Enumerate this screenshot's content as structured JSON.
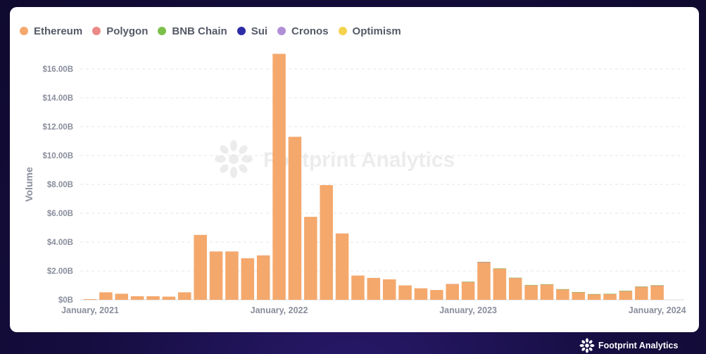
{
  "branding": {
    "watermark": "Footprint Analytics",
    "footer": "Footprint Analytics"
  },
  "legend": [
    {
      "name": "Ethereum",
      "color": "#f4a86c"
    },
    {
      "name": "Polygon",
      "color": "#ea8a86"
    },
    {
      "name": "BNB Chain",
      "color": "#7cc04b"
    },
    {
      "name": "Sui",
      "color": "#2e2ba6"
    },
    {
      "name": "Cronos",
      "color": "#b18fd6"
    },
    {
      "name": "Optimism",
      "color": "#f5d24e"
    }
  ],
  "chart_data": {
    "type": "bar",
    "stacked": true,
    "title": "",
    "xlabel": "",
    "ylabel": "Volume",
    "ylim": [
      0,
      17
    ],
    "yticks": [
      0,
      2,
      4,
      6,
      8,
      10,
      12,
      14,
      16
    ],
    "ytick_labels": [
      "$0B",
      "$2.00B",
      "$4.00B",
      "$6.00B",
      "$8.00B",
      "$10.00B",
      "$12.00B",
      "$14.00B",
      "$16.00B"
    ],
    "xtick_labels": [
      "January, 2021",
      "January, 2022",
      "January, 2023",
      "January, 2024"
    ],
    "xtick_months": [
      "2021-01",
      "2022-01",
      "2023-01",
      "2024-01"
    ],
    "grid": true,
    "legend_position": "top-left",
    "categories": [
      "2021-01",
      "2021-02",
      "2021-03",
      "2021-04",
      "2021-05",
      "2021-06",
      "2021-07",
      "2021-08",
      "2021-09",
      "2021-10",
      "2021-11",
      "2021-12",
      "2022-01",
      "2022-02",
      "2022-03",
      "2022-04",
      "2022-05",
      "2022-06",
      "2022-07",
      "2022-08",
      "2022-09",
      "2022-10",
      "2022-11",
      "2022-12",
      "2023-01",
      "2023-02",
      "2023-03",
      "2023-04",
      "2023-05",
      "2023-06",
      "2023-07",
      "2023-08",
      "2023-09",
      "2023-10",
      "2023-11",
      "2023-12",
      "2024-01"
    ],
    "series": [
      {
        "name": "Ethereum",
        "color": "#f4a86c",
        "values": [
          0.05,
          0.52,
          0.42,
          0.25,
          0.25,
          0.22,
          0.52,
          4.5,
          3.35,
          3.35,
          2.88,
          3.08,
          17.05,
          11.3,
          5.75,
          7.95,
          4.6,
          1.68,
          1.52,
          1.42,
          1.0,
          0.8,
          0.68,
          1.08,
          1.22,
          2.55,
          2.15,
          1.5,
          1.0,
          1.05,
          0.72,
          0.52,
          0.38,
          0.4,
          0.6,
          0.88,
          0.95
        ]
      },
      {
        "name": "Polygon",
        "color": "#ea8a86",
        "values": [
          0,
          0,
          0,
          0,
          0,
          0,
          0,
          0,
          0,
          0,
          0,
          0,
          0,
          0,
          0,
          0,
          0,
          0,
          0,
          0,
          0,
          0,
          0,
          0.02,
          0.02,
          0.07,
          0.02,
          0.02,
          0.02,
          0.02,
          0.01,
          0.01,
          0.01,
          0.01,
          0.02,
          0.03,
          0.05
        ]
      },
      {
        "name": "BNB Chain",
        "color": "#7cc04b",
        "values": [
          0,
          0,
          0,
          0,
          0,
          0,
          0,
          0,
          0,
          0,
          0,
          0,
          0,
          0,
          0,
          0,
          0,
          0,
          0,
          0,
          0,
          0,
          0,
          0,
          0.02,
          0.01,
          0.01,
          0.01,
          0.01,
          0.01,
          0.01,
          0.01,
          0.01,
          0.01,
          0.01,
          0.01,
          0.01
        ]
      },
      {
        "name": "Sui",
        "color": "#2e2ba6",
        "values": [
          0,
          0,
          0,
          0,
          0,
          0,
          0,
          0,
          0,
          0,
          0,
          0,
          0,
          0,
          0,
          0,
          0,
          0,
          0,
          0,
          0,
          0,
          0,
          0,
          0,
          0,
          0,
          0,
          0,
          0,
          0,
          0,
          0,
          0,
          0,
          0,
          0
        ]
      },
      {
        "name": "Cronos",
        "color": "#b18fd6",
        "values": [
          0,
          0,
          0,
          0,
          0,
          0,
          0,
          0,
          0,
          0,
          0,
          0,
          0,
          0,
          0,
          0,
          0,
          0,
          0,
          0,
          0,
          0,
          0,
          0,
          0,
          0,
          0,
          0,
          0,
          0,
          0,
          0,
          0,
          0,
          0,
          0,
          0
        ]
      },
      {
        "name": "Optimism",
        "color": "#f5d24e",
        "values": [
          0,
          0,
          0,
          0,
          0,
          0,
          0,
          0,
          0,
          0,
          0,
          0,
          0,
          0,
          0,
          0,
          0,
          0,
          0,
          0,
          0,
          0,
          0,
          0,
          0,
          0,
          0,
          0,
          0,
          0,
          0,
          0,
          0,
          0,
          0,
          0,
          0
        ]
      }
    ]
  }
}
